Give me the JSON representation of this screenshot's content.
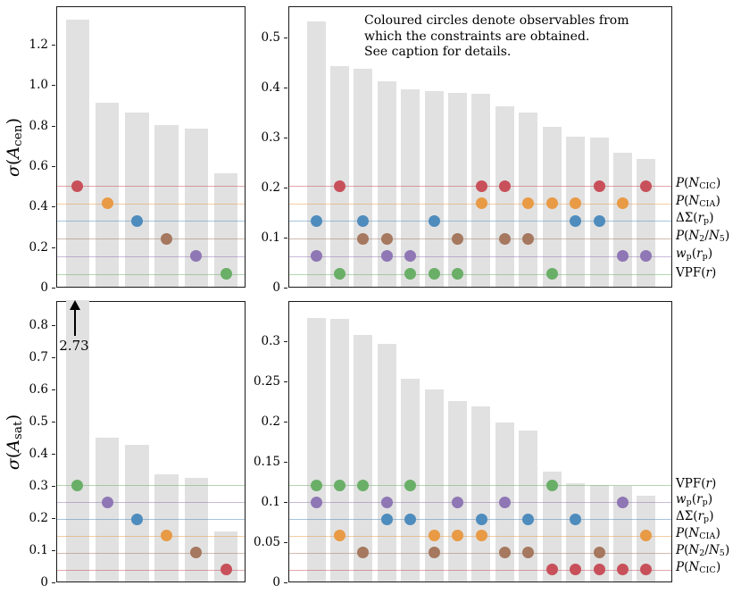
{
  "figure": {
    "annotation_lines": [
      "Coloured circles denote observables from",
      "which the constraints are obtained.",
      "See caption for details."
    ],
    "clip_label": "2.73"
  },
  "colors": {
    "red": "#c8505a",
    "orange": "#e89a45",
    "blue": "#4e8cbd",
    "brown": "#a5785f",
    "purple": "#8f76b4",
    "green": "#6aaf67",
    "bar": "#e1e1e1",
    "axis": "#1a1a1a"
  },
  "chart_data": {
    "type": "bar",
    "title": "",
    "observables": {
      "red": "P(N_CIC)",
      "orange": "P(N_CIA)",
      "blue": "DeltaSigma(r_p)",
      "brown": "P(N_2/N_5)",
      "purple": "w_p(r_p)",
      "green": "VPF(r)"
    },
    "observable_segments": {
      "red": [
        {
          "t": "P",
          "i": true
        },
        {
          "t": "("
        },
        {
          "t": "N",
          "i": true
        },
        {
          "t": "CIC",
          "s": true
        },
        {
          "t": ")"
        }
      ],
      "orange": [
        {
          "t": "P",
          "i": true
        },
        {
          "t": "("
        },
        {
          "t": "N",
          "i": true
        },
        {
          "t": "CIA",
          "s": true
        },
        {
          "t": ")"
        }
      ],
      "blue": [
        {
          "t": "ΔΣ("
        },
        {
          "t": "r",
          "i": true
        },
        {
          "t": "p",
          "s": true
        },
        {
          "t": ")"
        }
      ],
      "brown": [
        {
          "t": "P",
          "i": true
        },
        {
          "t": "("
        },
        {
          "t": "N",
          "i": true
        },
        {
          "t": "2",
          "s": true
        },
        {
          "t": "/"
        },
        {
          "t": "N",
          "i": true
        },
        {
          "t": "5",
          "s": true
        },
        {
          "t": ")"
        }
      ],
      "purple": [
        {
          "t": "w",
          "i": true
        },
        {
          "t": "p",
          "s": true
        },
        {
          "t": "("
        },
        {
          "t": "r",
          "i": true
        },
        {
          "t": "p",
          "s": true
        },
        {
          "t": ")"
        }
      ],
      "green": [
        {
          "t": "VPF("
        },
        {
          "t": "r",
          "i": true
        },
        {
          "t": ")"
        }
      ]
    },
    "right_label_order": [
      [
        "red",
        "orange",
        "blue",
        "brown",
        "purple",
        "green"
      ],
      [
        "green",
        "purple",
        "blue",
        "orange",
        "brown",
        "red"
      ]
    ],
    "panels": [
      {
        "name": "sigma-acen-singles",
        "row": 0,
        "col": 0,
        "ylabel": "σ(A_cen)",
        "ylabel_segments": [
          {
            "t": "σ",
            "i": true
          },
          {
            "t": "("
          },
          {
            "t": "A",
            "i": true
          },
          {
            "t": "cen",
            "s": true
          },
          {
            "t": ")"
          }
        ],
        "ymax": 1.39,
        "yticks": [
          {
            "v": 0,
            "t": "0"
          },
          {
            "v": 0.2,
            "t": "0.2"
          },
          {
            "v": 0.4,
            "t": "0.4"
          },
          {
            "v": 0.6,
            "t": "0.6"
          },
          {
            "v": 0.8,
            "t": "0.8"
          },
          {
            "v": 1.0,
            "t": "1.0"
          },
          {
            "v": 1.2,
            "t": "1.2"
          }
        ],
        "lines": {
          "red": 0.507,
          "orange": 0.42,
          "blue": 0.334,
          "brown": 0.247,
          "purple": 0.161,
          "green": 0.072
        },
        "bars": [
          {
            "value": 1.32,
            "dots": [
              "red"
            ]
          },
          {
            "value": 0.91,
            "dots": [
              "orange"
            ]
          },
          {
            "value": 0.86,
            "dots": [
              "blue"
            ]
          },
          {
            "value": 0.8,
            "dots": [
              "brown"
            ]
          },
          {
            "value": 0.78,
            "dots": [
              "purple"
            ]
          },
          {
            "value": 0.56,
            "dots": [
              "green"
            ]
          }
        ]
      },
      {
        "name": "sigma-acen-pairs",
        "row": 0,
        "col": 1,
        "ylabel": "",
        "ymax": 0.562,
        "yticks": [
          {
            "v": 0,
            "t": "0"
          },
          {
            "v": 0.1,
            "t": "0.1"
          },
          {
            "v": 0.2,
            "t": "0.2"
          },
          {
            "v": 0.3,
            "t": "0.3"
          },
          {
            "v": 0.4,
            "t": "0.4"
          },
          {
            "v": 0.5,
            "t": "0.5"
          }
        ],
        "lines": {
          "red": 0.205,
          "orange": 0.17,
          "blue": 0.135,
          "brown": 0.1,
          "purple": 0.065,
          "green": 0.029
        },
        "bars": [
          {
            "value": 0.53,
            "dots": [
              "blue",
              "purple"
            ]
          },
          {
            "value": 0.44,
            "dots": [
              "red",
              "green"
            ]
          },
          {
            "value": 0.435,
            "dots": [
              "blue",
              "brown"
            ]
          },
          {
            "value": 0.41,
            "dots": [
              "brown",
              "purple"
            ]
          },
          {
            "value": 0.395,
            "dots": [
              "purple",
              "green"
            ]
          },
          {
            "value": 0.39,
            "dots": [
              "blue",
              "green"
            ]
          },
          {
            "value": 0.388,
            "dots": [
              "brown",
              "green"
            ]
          },
          {
            "value": 0.385,
            "dots": [
              "red",
              "orange"
            ]
          },
          {
            "value": 0.36,
            "dots": [
              "red",
              "brown"
            ]
          },
          {
            "value": 0.348,
            "dots": [
              "orange",
              "brown"
            ]
          },
          {
            "value": 0.32,
            "dots": [
              "orange",
              "green"
            ]
          },
          {
            "value": 0.3,
            "dots": [
              "orange",
              "blue"
            ]
          },
          {
            "value": 0.298,
            "dots": [
              "red",
              "blue"
            ]
          },
          {
            "value": 0.268,
            "dots": [
              "orange",
              "purple"
            ]
          },
          {
            "value": 0.256,
            "dots": [
              "red",
              "purple"
            ]
          }
        ]
      },
      {
        "name": "sigma-asat-singles",
        "row": 1,
        "col": 0,
        "ylabel": "σ(A_sat)",
        "ylabel_segments": [
          {
            "t": "σ",
            "i": true
          },
          {
            "t": "("
          },
          {
            "t": "A",
            "i": true
          },
          {
            "t": "sat",
            "s": true
          },
          {
            "t": ")"
          }
        ],
        "ymax": 0.875,
        "yticks": [
          {
            "v": 0,
            "t": "0"
          },
          {
            "v": 0.1,
            "t": "0.1"
          },
          {
            "v": 0.2,
            "t": "0.2"
          },
          {
            "v": 0.3,
            "t": "0.3"
          },
          {
            "v": 0.4,
            "t": "0.4"
          },
          {
            "v": 0.5,
            "t": "0.5"
          },
          {
            "v": 0.6,
            "t": "0.6"
          },
          {
            "v": 0.7,
            "t": "0.7"
          },
          {
            "v": 0.8,
            "t": "0.8"
          }
        ],
        "lines": {
          "green": 0.305,
          "purple": 0.2525,
          "blue": 0.2,
          "orange": 0.1475,
          "brown": 0.095,
          "red": 0.0425
        },
        "bars": [
          {
            "value": 2.73,
            "clipped": true,
            "dots": [
              "green"
            ]
          },
          {
            "value": 0.447,
            "dots": [
              "purple"
            ]
          },
          {
            "value": 0.425,
            "dots": [
              "blue"
            ]
          },
          {
            "value": 0.333,
            "dots": [
              "orange"
            ]
          },
          {
            "value": 0.322,
            "dots": [
              "brown"
            ]
          },
          {
            "value": 0.156,
            "dots": [
              "red"
            ]
          }
        ]
      },
      {
        "name": "sigma-asat-pairs",
        "row": 1,
        "col": 1,
        "ylabel": "",
        "ymax": 0.35,
        "yticks": [
          {
            "v": 0,
            "t": "0"
          },
          {
            "v": 0.05,
            "t": "0.05"
          },
          {
            "v": 0.1,
            "t": "0.1"
          },
          {
            "v": 0.15,
            "t": "0.15"
          },
          {
            "v": 0.2,
            "t": "0.2"
          },
          {
            "v": 0.25,
            "t": "0.25"
          },
          {
            "v": 0.3,
            "t": "0.3"
          }
        ],
        "lines": {
          "green": 0.122,
          "purple": 0.101,
          "blue": 0.08,
          "orange": 0.059,
          "brown": 0.038,
          "red": 0.017
        },
        "bars": [
          {
            "value": 0.328,
            "dots": [
              "green",
              "purple"
            ]
          },
          {
            "value": 0.327,
            "dots": [
              "green",
              "orange"
            ]
          },
          {
            "value": 0.307,
            "dots": [
              "green",
              "brown"
            ]
          },
          {
            "value": 0.296,
            "dots": [
              "purple",
              "blue"
            ]
          },
          {
            "value": 0.252,
            "dots": [
              "green",
              "blue"
            ]
          },
          {
            "value": 0.239,
            "dots": [
              "orange",
              "brown"
            ]
          },
          {
            "value": 0.225,
            "dots": [
              "purple",
              "orange"
            ]
          },
          {
            "value": 0.218,
            "dots": [
              "blue",
              "orange"
            ]
          },
          {
            "value": 0.198,
            "dots": [
              "purple",
              "brown"
            ]
          },
          {
            "value": 0.188,
            "dots": [
              "blue",
              "brown"
            ]
          },
          {
            "value": 0.137,
            "dots": [
              "green",
              "red"
            ]
          },
          {
            "value": 0.122,
            "dots": [
              "blue",
              "red"
            ]
          },
          {
            "value": 0.12,
            "dots": [
              "brown",
              "red"
            ]
          },
          {
            "value": 0.119,
            "dots": [
              "purple",
              "red"
            ]
          },
          {
            "value": 0.107,
            "dots": [
              "orange",
              "red"
            ]
          }
        ]
      }
    ]
  }
}
